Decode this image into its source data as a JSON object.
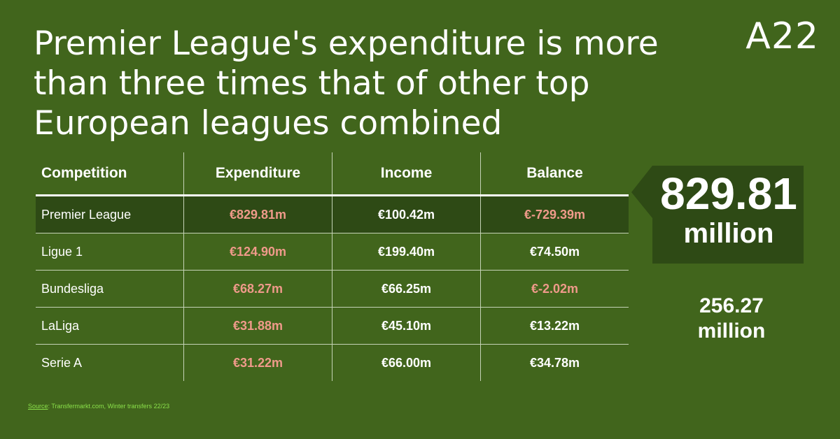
{
  "brand": "A22",
  "chart_data": {
    "type": "table",
    "title": "Premier League's expenditure is more than three times that of other top European leagues combined",
    "columns": [
      "Competition",
      "Expenditure",
      "Income",
      "Balance"
    ],
    "rows": [
      {
        "competition": "Premier League",
        "expenditure": "€829.81m",
        "income": "€100.42m",
        "balance": "€-729.39m",
        "highlight": true
      },
      {
        "competition": "Ligue 1",
        "expenditure": "€124.90m",
        "income": "€199.40m",
        "balance": "€74.50m",
        "highlight": false
      },
      {
        "competition": "Bundesliga",
        "expenditure": "€68.27m",
        "income": "€66.25m",
        "balance": "€-2.02m",
        "highlight": false
      },
      {
        "competition": "LaLiga",
        "expenditure": "€31.88m",
        "income": "€45.10m",
        "balance": "€13.22m",
        "highlight": false
      },
      {
        "competition": "Serie A",
        "expenditure": "€31.22m",
        "income": "€66.00m",
        "balance": "€34.78m",
        "highlight": false
      }
    ]
  },
  "callout": {
    "value": "829.81",
    "unit": "million"
  },
  "secondary": {
    "value": "256.27",
    "unit": "million"
  },
  "source": {
    "label": "Source",
    "text": ": Transfermarkt.com, Winter transfers 22/23"
  },
  "colors": {
    "background": "#41651c",
    "highlight_row": "#2e4a15",
    "negative_text": "#ef9a8a",
    "source_text": "#8ae04a"
  }
}
